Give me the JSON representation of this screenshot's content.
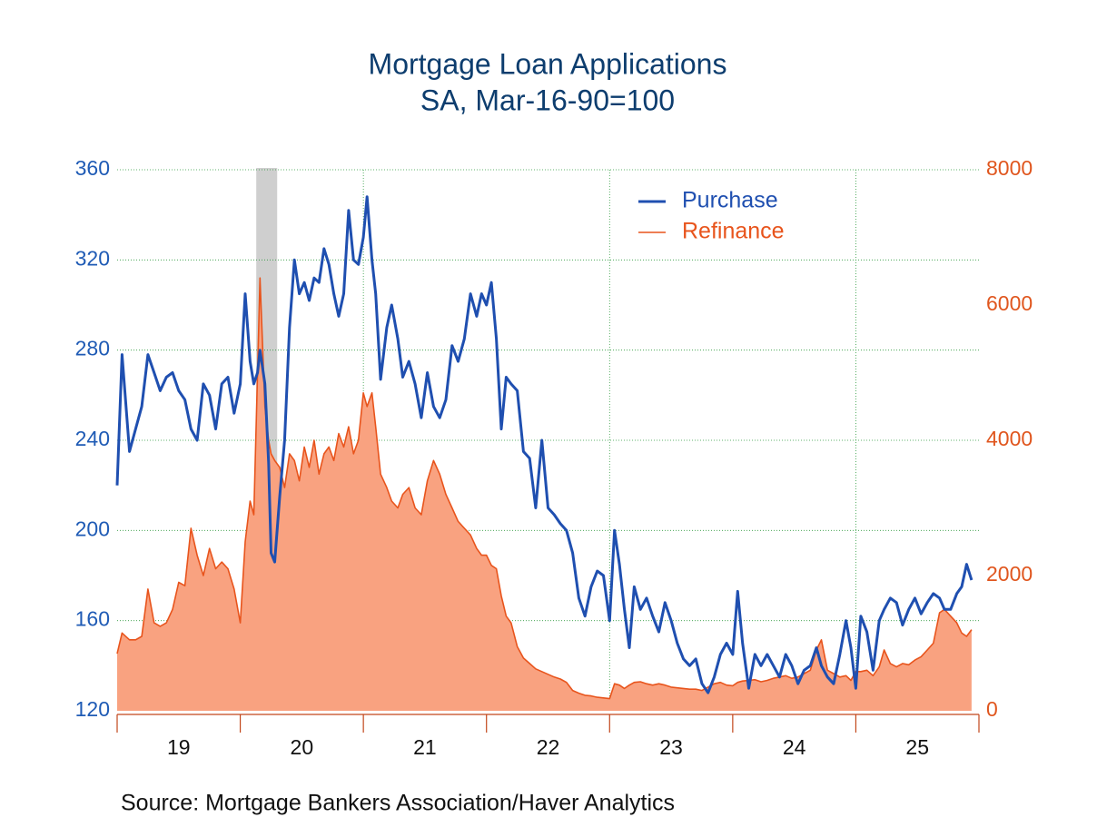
{
  "chart_data": {
    "type": "line-area",
    "title": "Mortgage Loan Applications",
    "subtitle": "SA, Mar-16-90=100",
    "source": "Source:  Mortgage Bankers Association/Haver Analytics",
    "x": [
      2019.0,
      2019.04,
      2019.1,
      2019.15,
      2019.2,
      2019.25,
      2019.3,
      2019.35,
      2019.4,
      2019.45,
      2019.5,
      2019.55,
      2019.6,
      2019.65,
      2019.7,
      2019.75,
      2019.8,
      2019.85,
      2019.9,
      2019.95,
      2020.0,
      2020.04,
      2020.08,
      2020.11,
      2020.14,
      2020.16,
      2020.2,
      2020.23,
      2020.25,
      2020.28,
      2020.32,
      2020.36,
      2020.4,
      2020.44,
      2020.48,
      2020.52,
      2020.56,
      2020.6,
      2020.64,
      2020.68,
      2020.72,
      2020.76,
      2020.8,
      2020.84,
      2020.88,
      2020.92,
      2020.96,
      2021.0,
      2021.03,
      2021.07,
      2021.1,
      2021.14,
      2021.19,
      2021.23,
      2021.28,
      2021.32,
      2021.37,
      2021.42,
      2021.47,
      2021.52,
      2021.57,
      2021.62,
      2021.67,
      2021.72,
      2021.77,
      2021.82,
      2021.87,
      2021.92,
      2021.96,
      2022.0,
      2022.04,
      2022.08,
      2022.12,
      2022.16,
      2022.2,
      2022.25,
      2022.3,
      2022.35,
      2022.4,
      2022.45,
      2022.5,
      2022.55,
      2022.6,
      2022.65,
      2022.7,
      2022.75,
      2022.8,
      2022.85,
      2022.9,
      2022.95,
      2023.0,
      2023.04,
      2023.08,
      2023.12,
      2023.16,
      2023.2,
      2023.25,
      2023.3,
      2023.35,
      2023.4,
      2023.45,
      2023.5,
      2023.55,
      2023.6,
      2023.65,
      2023.7,
      2023.75,
      2023.8,
      2023.85,
      2023.9,
      2023.95,
      2024.0,
      2024.04,
      2024.08,
      2024.13,
      2024.18,
      2024.23,
      2024.28,
      2024.33,
      2024.38,
      2024.43,
      2024.48,
      2024.53,
      2024.58,
      2024.63,
      2024.68,
      2024.72,
      2024.77,
      2024.82,
      2024.87,
      2024.92,
      2024.96,
      2025.0,
      2025.04,
      2025.09,
      2025.14,
      2025.19,
      2025.23,
      2025.28,
      2025.33,
      2025.38,
      2025.43,
      2025.48,
      2025.53,
      2025.58,
      2025.63,
      2025.68,
      2025.72,
      2025.77,
      2025.82,
      2025.86,
      2025.9,
      2025.94
    ],
    "series": [
      {
        "name": "Purchase",
        "color": "#1f4fb0",
        "values": [
          220,
          278,
          235,
          245,
          255,
          278,
          270,
          262,
          268,
          270,
          262,
          258,
          245,
          240,
          265,
          260,
          245,
          265,
          268,
          252,
          265,
          305,
          275,
          265,
          270,
          280,
          265,
          230,
          190,
          186,
          215,
          240,
          290,
          320,
          305,
          310,
          302,
          312,
          310,
          325,
          318,
          305,
          295,
          305,
          342,
          320,
          318,
          330,
          348,
          320,
          305,
          267,
          290,
          300,
          285,
          268,
          275,
          265,
          250,
          270,
          255,
          250,
          258,
          282,
          275,
          285,
          305,
          295,
          305,
          300,
          310,
          285,
          245,
          268,
          265,
          262,
          235,
          232,
          210,
          240,
          210,
          207,
          203,
          200,
          190,
          170,
          162,
          175,
          182,
          180,
          160,
          200,
          185,
          165,
          148,
          175,
          165,
          170,
          162,
          155,
          168,
          160,
          150,
          143,
          140,
          143,
          132,
          128,
          135,
          145,
          150,
          145,
          173,
          150,
          130,
          145,
          140,
          145,
          140,
          135,
          145,
          140,
          132,
          138,
          140,
          148,
          140,
          135,
          132,
          145,
          160,
          148,
          130,
          162,
          155,
          138,
          160,
          165,
          170,
          168,
          158,
          165,
          170,
          163,
          168,
          172,
          170,
          165,
          165,
          172,
          175,
          185,
          178
        ]
      },
      {
        "name": "Refinance",
        "color": "#e8541c",
        "fill": "#f9a280",
        "axis": "y2",
        "values": [
          845,
          1150,
          1050,
          1050,
          1100,
          1800,
          1300,
          1250,
          1300,
          1500,
          1900,
          1850,
          2700,
          2300,
          2000,
          2400,
          2100,
          2200,
          2100,
          1800,
          1300,
          2500,
          3100,
          2900,
          5000,
          6400,
          4500,
          4000,
          3800,
          3700,
          3600,
          3300,
          3800,
          3700,
          3400,
          3900,
          3600,
          4000,
          3500,
          3800,
          3900,
          3700,
          4100,
          3900,
          4200,
          3800,
          4000,
          4700,
          4500,
          4700,
          4200,
          3500,
          3300,
          3100,
          3000,
          3200,
          3300,
          3000,
          2900,
          3400,
          3700,
          3500,
          3200,
          3000,
          2800,
          2700,
          2600,
          2400,
          2300,
          2300,
          2150,
          2100,
          1700,
          1400,
          1300,
          950,
          780,
          700,
          620,
          580,
          540,
          500,
          470,
          420,
          300,
          260,
          230,
          220,
          200,
          190,
          180,
          400,
          380,
          330,
          380,
          420,
          430,
          400,
          380,
          400,
          380,
          350,
          340,
          330,
          320,
          320,
          300,
          350,
          400,
          420,
          380,
          370,
          420,
          440,
          450,
          460,
          430,
          450,
          480,
          500,
          520,
          480,
          500,
          550,
          600,
          900,
          1050,
          600,
          550,
          500,
          520,
          450,
          580,
          580,
          600,
          520,
          650,
          900,
          700,
          650,
          700,
          680,
          750,
          800,
          900,
          1000,
          1450,
          1500,
          1400,
          1300,
          1150,
          1100,
          1200
        ]
      }
    ],
    "xlim": [
      2019,
      2026
    ],
    "xticks": [
      2019,
      2020,
      2021,
      2022,
      2023,
      2024,
      2025,
      2026
    ],
    "xlabels": [
      {
        "value": 2019.5,
        "label": "19"
      },
      {
        "value": 2020.5,
        "label": "20"
      },
      {
        "value": 2021.5,
        "label": "21"
      },
      {
        "value": 2022.5,
        "label": "22"
      },
      {
        "value": 2023.5,
        "label": "23"
      },
      {
        "value": 2024.5,
        "label": "24"
      },
      {
        "value": 2025.5,
        "label": "25"
      }
    ],
    "xgrid": [
      2021,
      2023,
      2025
    ],
    "ylim": [
      120,
      360
    ],
    "yticks": [
      120,
      160,
      200,
      240,
      280,
      320,
      360
    ],
    "y2lim": [
      0,
      8000
    ],
    "y2ticks": [
      0,
      2000,
      4000,
      6000,
      8000
    ],
    "recession": [
      2020.13,
      2020.3
    ],
    "grid": true,
    "legend": "top"
  }
}
